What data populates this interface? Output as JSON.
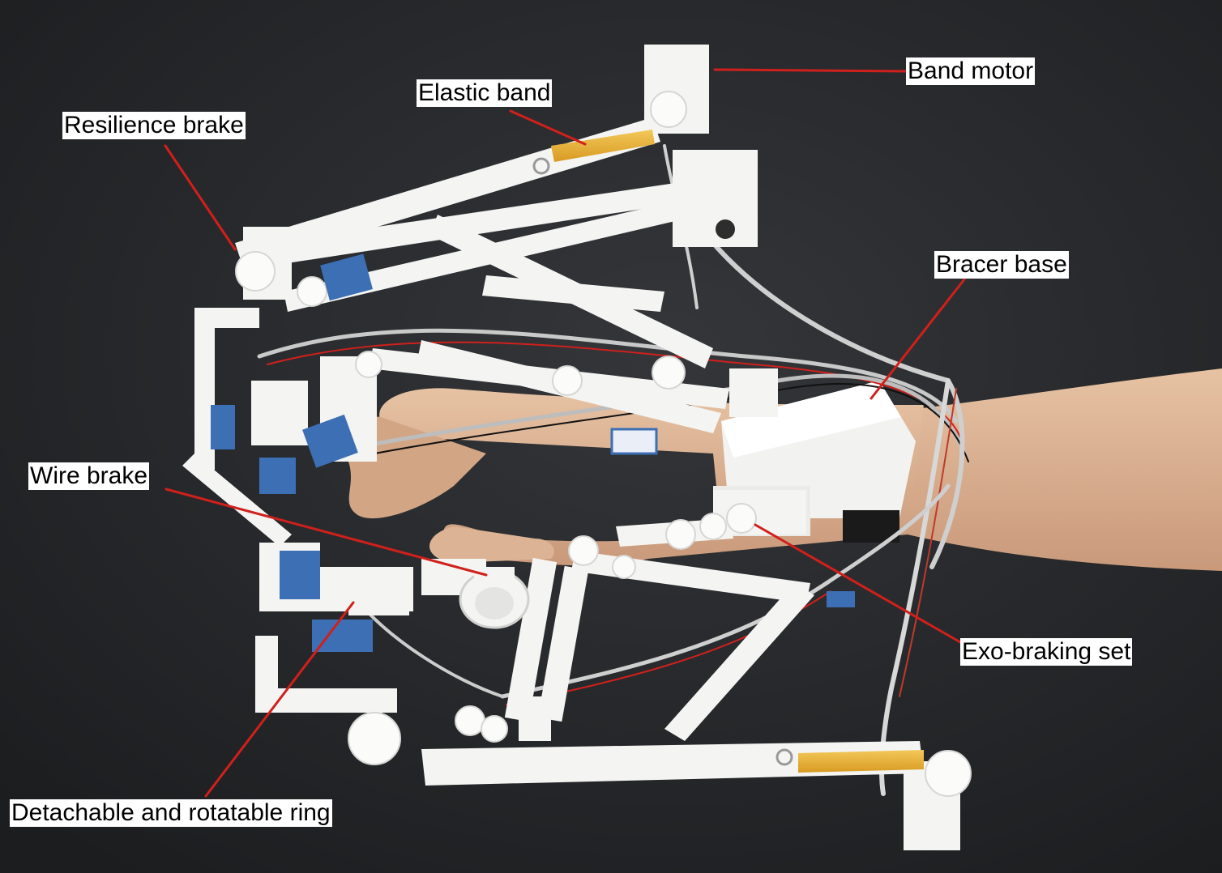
{
  "figure": {
    "labels": {
      "band_motor": "Band motor",
      "elastic_band": "Elastic band",
      "resilience_brake": "Resilience brake",
      "bracer_base": "Bracer base",
      "wire_brake": "Wire brake",
      "exo_braking_set": "Exo-braking set",
      "detachable_ring": "Detachable and rotatable ring"
    }
  },
  "colors": {
    "background": "#262729",
    "leader_line": "#d0201c",
    "label_bg": "#ffffff",
    "label_text": "#000000",
    "device_white": "#f4f4f2",
    "skin": "#d9b293",
    "elastic_band": "#e8b23a",
    "servo_blue": "#3d6fb5"
  }
}
